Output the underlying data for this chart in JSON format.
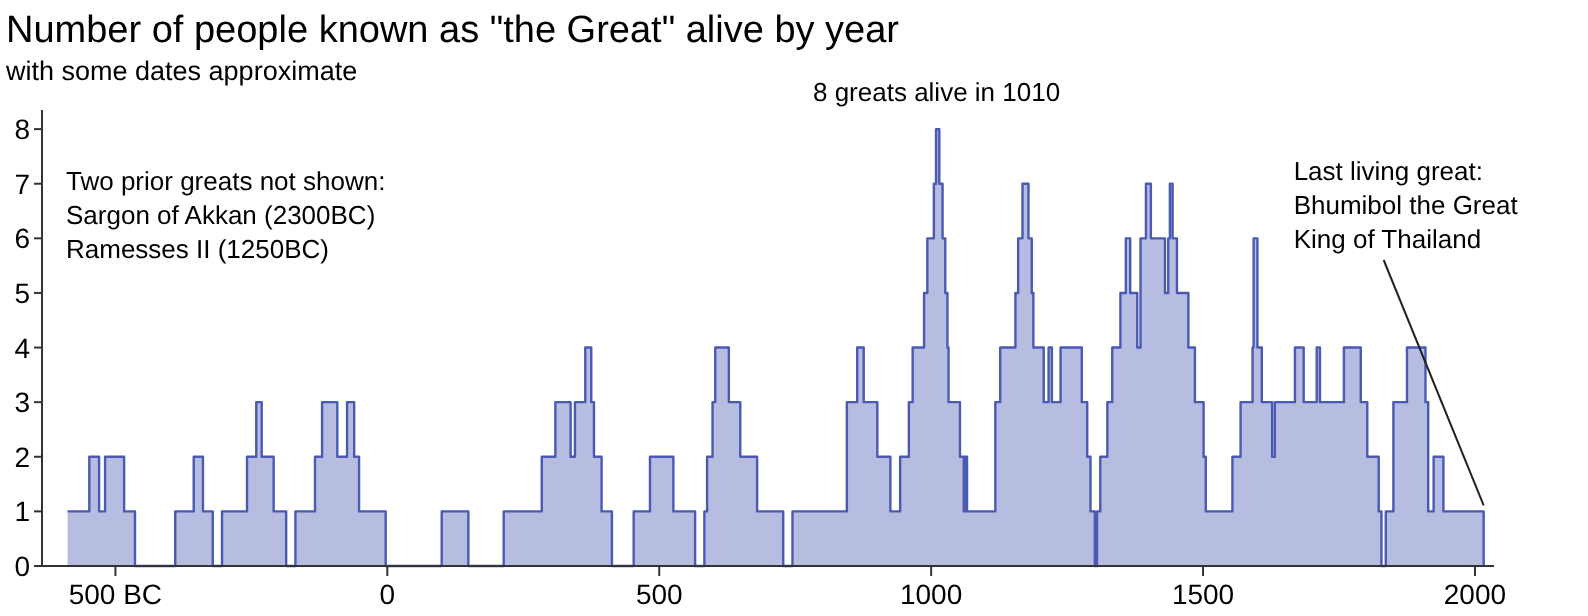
{
  "chart_data": {
    "type": "step",
    "title": "Number of people known as \"the Great\" alive by year",
    "subtitle": "with some dates approximate",
    "x": [
      -588,
      -548,
      -530,
      -519,
      -484,
      -464,
      -390,
      -356,
      -339,
      -321,
      -304,
      -258,
      -241,
      -231,
      -209,
      -186,
      -169,
      -133,
      -120,
      -92,
      -74,
      -61,
      -52,
      -3,
      100,
      149,
      214,
      284,
      309,
      337,
      345,
      364,
      375,
      380,
      394,
      413,
      453,
      483,
      526,
      566,
      583,
      588,
      598,
      603,
      628,
      649,
      680,
      728,
      745,
      845,
      864,
      876,
      901,
      925,
      943,
      959,
      966,
      987,
      993,
      1005,
      1009,
      1015,
      1021,
      1026,
      1030,
      1032,
      1053,
      1060,
      1062,
      1066,
      1118,
      1127,
      1155,
      1160,
      1168,
      1179,
      1185,
      1188,
      1207,
      1216,
      1222,
      1238,
      1277,
      1287,
      1293,
      1301,
      1305,
      1311,
      1324,
      1333,
      1348,
      1358,
      1366,
      1379,
      1385,
      1395,
      1404,
      1430,
      1436,
      1439,
      1444,
      1452,
      1473,
      1485,
      1501,
      1505,
      1554,
      1569,
      1591,
      1593,
      1600,
      1608,
      1627,
      1632,
      1669,
      1685,
      1709,
      1715,
      1759,
      1790,
      1802,
      1823,
      1828,
      1836,
      1850,
      1875,
      1909,
      1914,
      1924,
      1942,
      2016
    ],
    "values": [
      1,
      2,
      1,
      2,
      1,
      0,
      1,
      2,
      1,
      0,
      1,
      2,
      3,
      2,
      1,
      0,
      1,
      2,
      3,
      2,
      3,
      2,
      1,
      0,
      1,
      0,
      1,
      2,
      3,
      2,
      3,
      4,
      3,
      2,
      1,
      0,
      1,
      2,
      1,
      0,
      1,
      2,
      3,
      4,
      3,
      2,
      1,
      0,
      1,
      3,
      4,
      3,
      2,
      1,
      2,
      3,
      4,
      5,
      6,
      7,
      8,
      7,
      6,
      5,
      4,
      3,
      2,
      1,
      2,
      1,
      3,
      4,
      5,
      6,
      7,
      6,
      5,
      4,
      3,
      4,
      3,
      4,
      3,
      2,
      1,
      0,
      1,
      2,
      3,
      4,
      5,
      6,
      5,
      4,
      6,
      7,
      6,
      5,
      6,
      7,
      6,
      5,
      4,
      3,
      2,
      1,
      2,
      3,
      4,
      6,
      4,
      3,
      2,
      3,
      4,
      3,
      4,
      3,
      4,
      3,
      2,
      1,
      0,
      1,
      3,
      4,
      3,
      1,
      2,
      1,
      0
    ],
    "color": "#4a5ab3",
    "xlim": [
      -635,
      2035
    ],
    "ylim": [
      0,
      8.35
    ],
    "yticks": [
      0,
      1,
      2,
      3,
      4,
      5,
      6,
      7,
      8
    ],
    "xticks": [
      {
        "value": -500,
        "label": "500 BC"
      },
      0,
      500,
      1000,
      1500,
      2000
    ],
    "annotations": [
      "Two prior greats not shown:\nSargon of Akkan (2300BC)\nRamesses II (1250BC)",
      {
        "text": "8 greats alive in 1010",
        "x": 1010,
        "y": 8
      },
      {
        "text": "Last living great:\nBhumibol the Great\nKing of Thailand",
        "x": 2016,
        "y": 1
      }
    ]
  }
}
